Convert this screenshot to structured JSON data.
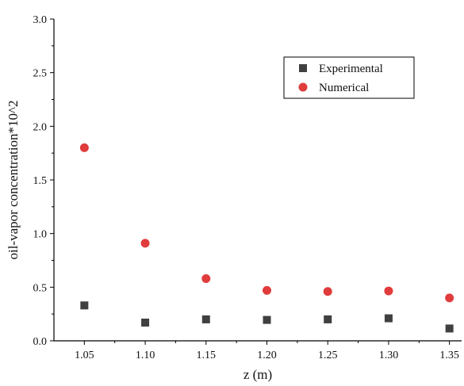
{
  "chart_data": {
    "type": "scatter",
    "title": "",
    "xlabel": "z (m)",
    "ylabel": "oil-vapor concentration*10^2",
    "xlim": [
      1.025,
      1.36
    ],
    "ylim": [
      0.0,
      3.0
    ],
    "x_ticks": [
      1.05,
      1.1,
      1.15,
      1.2,
      1.25,
      1.3,
      1.35
    ],
    "x_tick_labels": [
      "1.05",
      "1.10",
      "1.15",
      "1.20",
      "1.25",
      "1.30",
      "1.35"
    ],
    "y_ticks": [
      0.0,
      0.5,
      1.0,
      1.5,
      2.0,
      2.5,
      3.0
    ],
    "y_tick_labels": [
      "0.0",
      "0.5",
      "1.0",
      "1.5",
      "2.0",
      "2.5",
      "3.0"
    ],
    "grid": false,
    "legend_position": "top-right",
    "series": [
      {
        "name": "Experimental",
        "marker": "square",
        "color": "#404040",
        "x": [
          1.05,
          1.1,
          1.15,
          1.2,
          1.25,
          1.3,
          1.35
        ],
        "y": [
          0.33,
          0.17,
          0.2,
          0.195,
          0.2,
          0.21,
          0.115
        ]
      },
      {
        "name": "Numerical",
        "marker": "circle",
        "color": "#e03c3c",
        "x": [
          1.05,
          1.1,
          1.15,
          1.2,
          1.25,
          1.3,
          1.35
        ],
        "y": [
          1.8,
          0.91,
          0.58,
          0.47,
          0.46,
          0.465,
          0.4
        ]
      }
    ]
  }
}
